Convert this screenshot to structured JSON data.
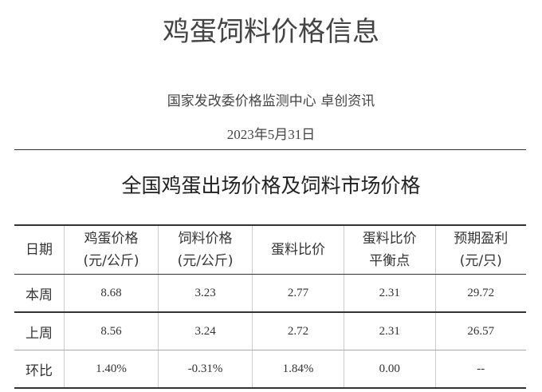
{
  "header": {
    "title": "鸡蛋饲料价格信息",
    "source": "国家发改委价格监测中心  卓创资讯",
    "date": "2023年5月31日"
  },
  "table": {
    "title": "全国鸡蛋出场价格及饲料市场价格",
    "columns": [
      [
        "日期"
      ],
      [
        "鸡蛋价格",
        "(元/公斤)"
      ],
      [
        "饲料价格",
        "(元/公斤)"
      ],
      [
        "蛋料比价"
      ],
      [
        "蛋料比价",
        "平衡点"
      ],
      [
        "预期盈利",
        "(元/只)"
      ]
    ],
    "rows": [
      [
        "本周",
        "8.68",
        "3.23",
        "2.77",
        "2.31",
        "29.72"
      ],
      [
        "上周",
        "8.56",
        "3.24",
        "2.72",
        "2.31",
        "26.57"
      ],
      [
        "环比",
        "1.40%",
        "-0.31%",
        "1.84%",
        "0.00",
        "--"
      ]
    ]
  }
}
